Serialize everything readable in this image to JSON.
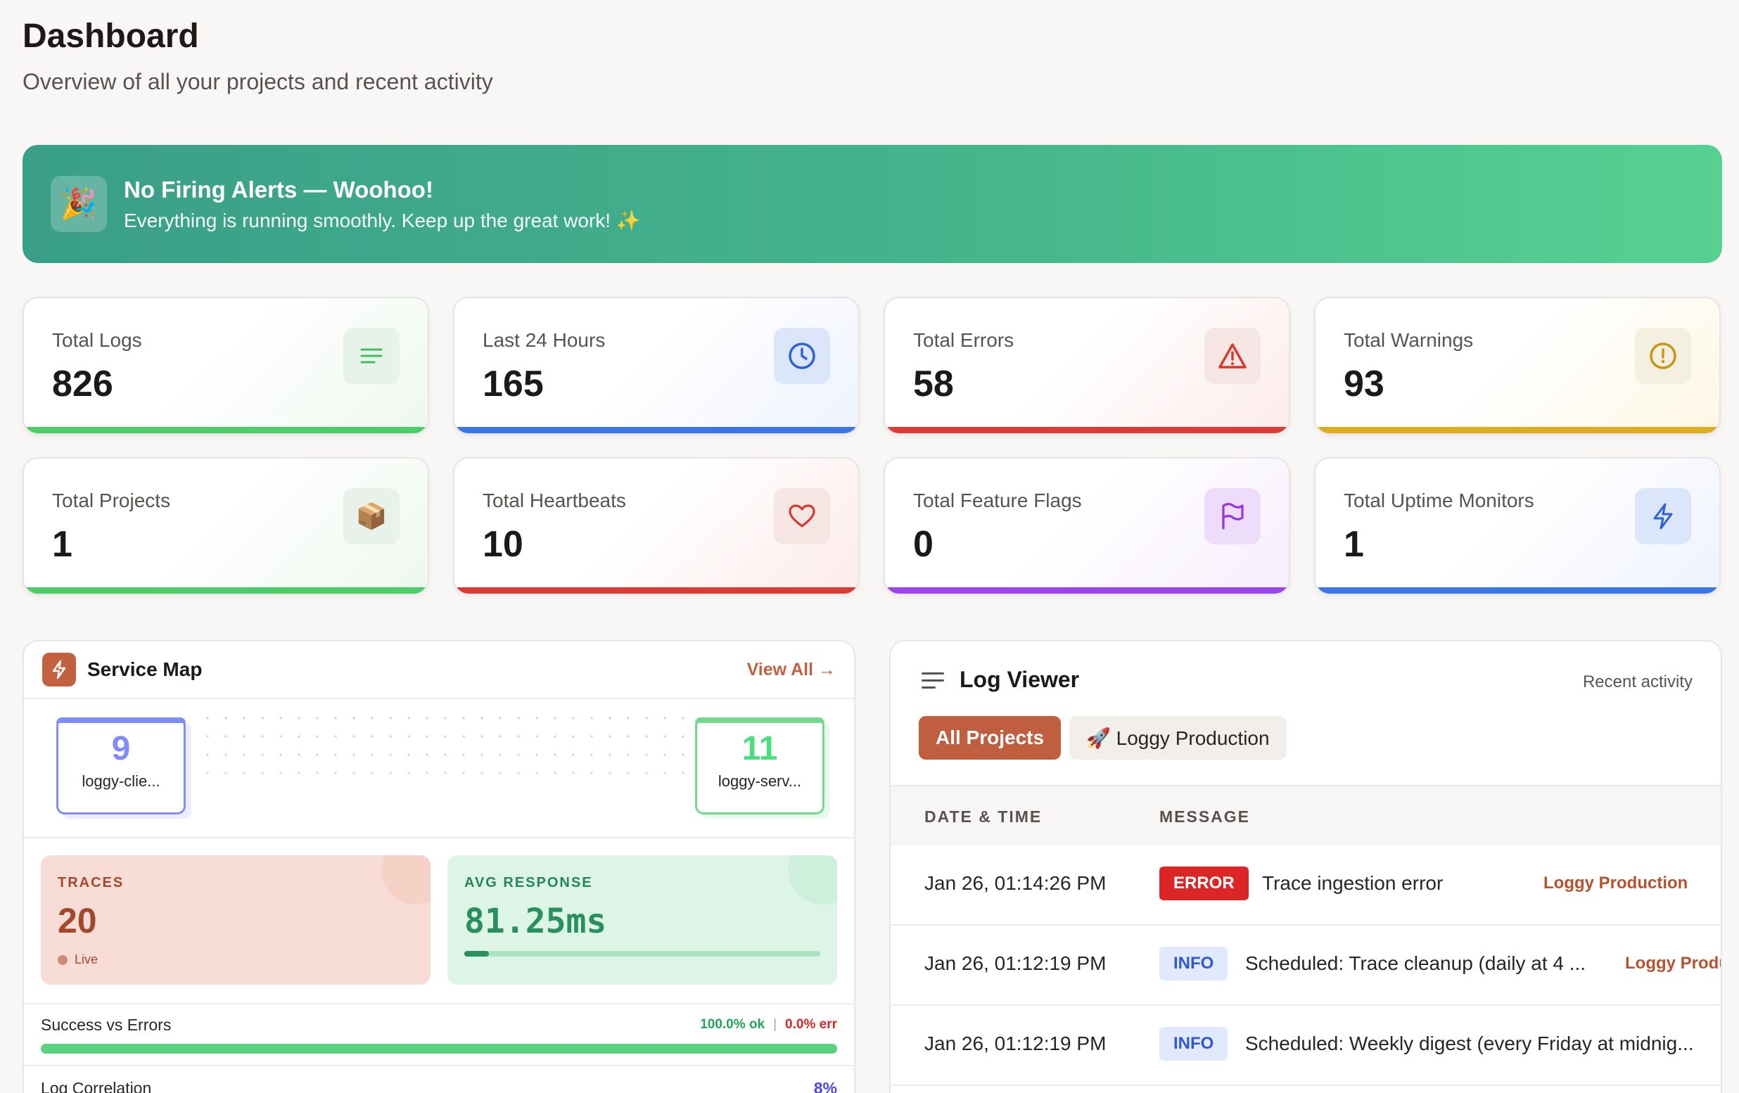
{
  "page": {
    "title": "Dashboard",
    "subtitle": "Overview of all your projects and recent activity"
  },
  "banner": {
    "icon": "party-popper-icon",
    "icon_glyph": "🎉",
    "title": "No Firing Alerts — Woohoo!",
    "subtitle": "Everything is running smoothly. Keep up the great work! ✨"
  },
  "stats": [
    {
      "label": "Total Logs",
      "value": "826",
      "icon": "list-icon",
      "color": "#4ccd67"
    },
    {
      "label": "Last 24 Hours",
      "value": "165",
      "icon": "clock-icon",
      "color": "#3b76e8"
    },
    {
      "label": "Total Errors",
      "value": "58",
      "icon": "warning-triangle-icon",
      "color": "#dc3a35"
    },
    {
      "label": "Total Warnings",
      "value": "93",
      "icon": "alert-circle-icon",
      "color": "#ddad1f"
    },
    {
      "label": "Total Projects",
      "value": "1",
      "icon": "package-icon",
      "icon_glyph": "📦",
      "color": "#4ccd67"
    },
    {
      "label": "Total Heartbeats",
      "value": "10",
      "icon": "heart-icon",
      "color": "#dc3a35"
    },
    {
      "label": "Total Feature Flags",
      "value": "0",
      "icon": "flag-icon",
      "color": "#9b44eb"
    },
    {
      "label": "Total Uptime Monitors",
      "value": "1",
      "icon": "bolt-icon",
      "color": "#3b76e8"
    }
  ],
  "service_map": {
    "title": "Service Map",
    "view_all": "View All →",
    "nodes": [
      {
        "count": "9",
        "name": "loggy-clie..."
      },
      {
        "count": "11",
        "name": "loggy-serv..."
      }
    ],
    "traces_label": "TRACES",
    "traces_value": "20",
    "live_label": "Live",
    "avg_label": "AVG RESPONSE",
    "avg_value": "81.25ms",
    "sve_label": "Success vs Errors",
    "sve_ok": "100.0% ok",
    "sve_sep": "|",
    "sve_err": "0.0% err",
    "log_corr_label": "Log Correlation",
    "log_corr_value": "8%"
  },
  "log_viewer": {
    "title": "Log Viewer",
    "recent": "Recent activity",
    "tabs": [
      {
        "label": "All Projects"
      },
      {
        "label": "🚀 Loggy Production"
      }
    ],
    "columns": [
      "DATE & TIME",
      "MESSAGE"
    ],
    "rows": [
      {
        "date": "Jan 26, 01:14:26 PM",
        "level": "ERROR",
        "message": "Trace ingestion error",
        "project": "Loggy Production"
      },
      {
        "date": "Jan 26, 01:12:19 PM",
        "level": "INFO",
        "message": "Scheduled: Trace cleanup (daily at 4 ...",
        "project": "Loggy Produ"
      },
      {
        "date": "Jan 26, 01:12:19 PM",
        "level": "INFO",
        "message": "Scheduled: Weekly digest (every Friday at midnig...",
        "project": ""
      }
    ]
  }
}
